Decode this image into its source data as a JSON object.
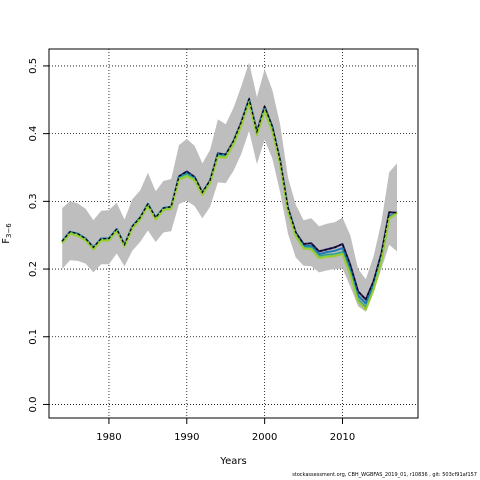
{
  "chart_data": {
    "type": "line",
    "xlabel": "Years",
    "ylabel": "F",
    "ylabel_sub": "3−6",
    "xlim": [
      1972.3,
      2019.7
    ],
    "ylim": [
      -0.02,
      0.525
    ],
    "xticks": [
      1980,
      1990,
      2000,
      2010
    ],
    "yticks": [
      0.0,
      0.1,
      0.2,
      0.3,
      0.4,
      0.5
    ],
    "ytick_labels": [
      "0.0",
      "0.1",
      "0.2",
      "0.3",
      "0.4",
      "0.5"
    ],
    "grid": true,
    "band_color": "#bebebe",
    "x": [
      1974,
      1975,
      1976,
      1977,
      1978,
      1979,
      1980,
      1981,
      1982,
      1983,
      1984,
      1985,
      1986,
      1987,
      1988,
      1989,
      1990,
      1991,
      1992,
      1993,
      1994,
      1995,
      1996,
      1997,
      1998,
      1999,
      2000,
      2001,
      2002,
      2003,
      2004,
      2005,
      2006,
      2007,
      2008,
      2009,
      2010,
      2011,
      2012,
      2013,
      2014,
      2015,
      2016,
      2017
    ],
    "band_upper": [
      0.29,
      0.3,
      0.297,
      0.289,
      0.272,
      0.286,
      0.287,
      0.298,
      0.273,
      0.303,
      0.316,
      0.342,
      0.315,
      0.33,
      0.333,
      0.383,
      0.392,
      0.382,
      0.356,
      0.376,
      0.421,
      0.414,
      0.438,
      0.47,
      0.505,
      0.454,
      0.495,
      0.464,
      0.413,
      0.335,
      0.295,
      0.272,
      0.275,
      0.263,
      0.267,
      0.269,
      0.276,
      0.25,
      0.2,
      0.185,
      0.219,
      0.269,
      0.343,
      0.356
    ],
    "band_lower": [
      0.2,
      0.213,
      0.212,
      0.208,
      0.195,
      0.207,
      0.207,
      0.223,
      0.204,
      0.227,
      0.24,
      0.257,
      0.24,
      0.254,
      0.256,
      0.296,
      0.301,
      0.293,
      0.275,
      0.292,
      0.328,
      0.327,
      0.345,
      0.37,
      0.404,
      0.355,
      0.391,
      0.363,
      0.313,
      0.252,
      0.217,
      0.205,
      0.204,
      0.195,
      0.198,
      0.2,
      0.201,
      0.174,
      0.145,
      0.137,
      0.166,
      0.2,
      0.236,
      0.226
    ],
    "series": [
      {
        "color": "#2d1e6b",
        "values": [
          0.241,
          0.255,
          0.252,
          0.245,
          0.232,
          0.245,
          0.245,
          0.259,
          0.236,
          0.263,
          0.276,
          0.296,
          0.276,
          0.29,
          0.292,
          0.337,
          0.344,
          0.336,
          0.313,
          0.331,
          0.371,
          0.369,
          0.389,
          0.417,
          0.451,
          0.403,
          0.44,
          0.41,
          0.36,
          0.29,
          0.254,
          0.237,
          0.238,
          0.226,
          0.229,
          0.232,
          0.237,
          0.206,
          0.167,
          0.155,
          0.182,
          0.223,
          0.284,
          0.283
        ]
      },
      {
        "color": "#1f77b4",
        "values": [
          0.241,
          0.255,
          0.252,
          0.245,
          0.232,
          0.245,
          0.245,
          0.259,
          0.236,
          0.263,
          0.276,
          0.296,
          0.276,
          0.29,
          0.292,
          0.336,
          0.342,
          0.335,
          0.312,
          0.33,
          0.37,
          0.368,
          0.388,
          0.416,
          0.45,
          0.402,
          0.438,
          0.408,
          0.358,
          0.288,
          0.252,
          0.234,
          0.234,
          0.222,
          0.225,
          0.227,
          0.231,
          0.2,
          0.161,
          0.149,
          0.177,
          0.218,
          0.278,
          0.283
        ]
      },
      {
        "color": "#2a9d8f",
        "values": [
          0.24,
          0.254,
          0.251,
          0.244,
          0.231,
          0.244,
          0.244,
          0.258,
          0.235,
          0.262,
          0.275,
          0.295,
          0.275,
          0.289,
          0.291,
          0.334,
          0.34,
          0.333,
          0.311,
          0.329,
          0.368,
          0.366,
          0.386,
          0.414,
          0.448,
          0.4,
          0.436,
          0.406,
          0.356,
          0.286,
          0.25,
          0.232,
          0.232,
          0.219,
          0.221,
          0.222,
          0.225,
          0.194,
          0.155,
          0.143,
          0.172,
          0.214,
          0.276,
          0.283
        ]
      },
      {
        "color": "#6fbf73",
        "values": [
          0.239,
          0.253,
          0.25,
          0.243,
          0.23,
          0.243,
          0.243,
          0.257,
          0.234,
          0.261,
          0.274,
          0.294,
          0.274,
          0.288,
          0.29,
          0.333,
          0.338,
          0.332,
          0.31,
          0.328,
          0.367,
          0.365,
          0.385,
          0.413,
          0.446,
          0.399,
          0.434,
          0.404,
          0.355,
          0.285,
          0.249,
          0.231,
          0.23,
          0.217,
          0.219,
          0.22,
          0.223,
          0.192,
          0.153,
          0.141,
          0.17,
          0.212,
          0.275,
          0.283
        ]
      },
      {
        "color": "#9acd32",
        "values": [
          0.238,
          0.252,
          0.249,
          0.242,
          0.229,
          0.242,
          0.242,
          0.256,
          0.233,
          0.26,
          0.273,
          0.293,
          0.273,
          0.287,
          0.289,
          0.332,
          0.337,
          0.331,
          0.309,
          0.327,
          0.366,
          0.364,
          0.384,
          0.412,
          0.445,
          0.398,
          0.433,
          0.403,
          0.354,
          0.284,
          0.248,
          0.23,
          0.229,
          0.216,
          0.218,
          0.219,
          0.222,
          0.191,
          0.152,
          0.14,
          0.169,
          0.211,
          0.274,
          0.283
        ]
      }
    ],
    "last_line": {
      "color": "#000000",
      "dash": "3,2",
      "values": [
        0.241,
        0.255,
        0.252,
        0.245,
        0.232,
        0.245,
        0.245,
        0.259,
        0.236,
        0.263,
        0.276,
        0.296,
        0.276,
        0.29,
        0.292,
        0.337,
        0.344,
        0.336,
        0.313,
        0.331,
        0.371,
        0.369,
        0.389,
        0.417,
        0.451,
        0.403,
        0.44,
        0.41,
        0.36,
        0.29,
        0.254,
        0.237,
        0.238,
        0.226,
        0.229,
        0.232,
        0.237,
        0.206,
        0.167,
        0.155,
        0.182,
        0.223,
        0.284,
        0.283
      ]
    }
  },
  "footer": "stockassessment.org, CBH_WGBFAS_2019_01, r10836 , git: 503cf91af157"
}
